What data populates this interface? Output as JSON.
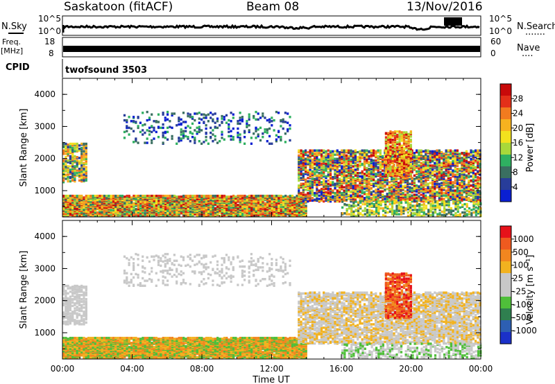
{
  "header": {
    "station": "Saskatoon (fitACF)",
    "beam": "Beam 08",
    "date": "13/Nov/2016"
  },
  "panels": {
    "nsky_label": "N.Sky",
    "nsearch_label": "N.Search",
    "nsearch_dots": ".......",
    "freq_label_1": "Freq.",
    "freq_label_2": "[MHz]",
    "nave_label": "Nave",
    "nave_dots": "....",
    "cpid_label": "CPID",
    "cpid_value": "twofsound 3503",
    "nsky_ticks": [
      "10^5",
      "10^0"
    ],
    "nsearch_ticks": [
      "10^5",
      "10^0"
    ],
    "freq_ticks": [
      "18",
      "8"
    ],
    "nave_ticks": [
      "60",
      "0"
    ]
  },
  "chart_data": [
    {
      "type": "heatmap",
      "name": "power",
      "ylabel": "Slant Range [km]",
      "xlabel": "Time UT",
      "x_ticks": [
        "00:00",
        "04:00",
        "08:00",
        "12:00",
        "16:00",
        "20:00",
        "00:00"
      ],
      "y_ticks": [
        "1000",
        "2000",
        "3000",
        "4000"
      ],
      "ylim": [
        180,
        4500
      ],
      "xlim_hours": [
        0,
        24
      ],
      "colorbar_label": "Power [dB]",
      "colorbar_ticks": [
        "28",
        "24",
        "20",
        "16",
        "12",
        "8",
        "4"
      ],
      "colors": [
        "#0a1fd2",
        "#283d9a",
        "#3a6f61",
        "#2fb061",
        "#a8d83a",
        "#f2e11e",
        "#f7b21f",
        "#f27b1f",
        "#e33019",
        "#c80a0a"
      ]
    },
    {
      "type": "heatmap",
      "name": "velocity",
      "ylabel": "Slant Range [km]",
      "xlabel": "Time UT",
      "x_ticks": [
        "00:00",
        "04:00",
        "08:00",
        "12:00",
        "16:00",
        "20:00",
        "00:00"
      ],
      "y_ticks": [
        "1000",
        "2000",
        "3000",
        "4000"
      ],
      "ylim": [
        180,
        4500
      ],
      "xlim_hours": [
        0,
        24
      ],
      "colorbar_label": "Velocity [m s⁻¹]",
      "colorbar_ticks": [
        "1000",
        "500",
        "100",
        "25",
        "-25",
        "-100",
        "-500",
        "-1000"
      ],
      "colors": [
        "#1b31c9",
        "#2d5fb2",
        "#2f7f4f",
        "#4fbf3a",
        "#c8c8c8",
        "#c8c8c8",
        "#f2b21f",
        "#f2861f",
        "#ef5a1f",
        "#e6121a"
      ]
    }
  ]
}
